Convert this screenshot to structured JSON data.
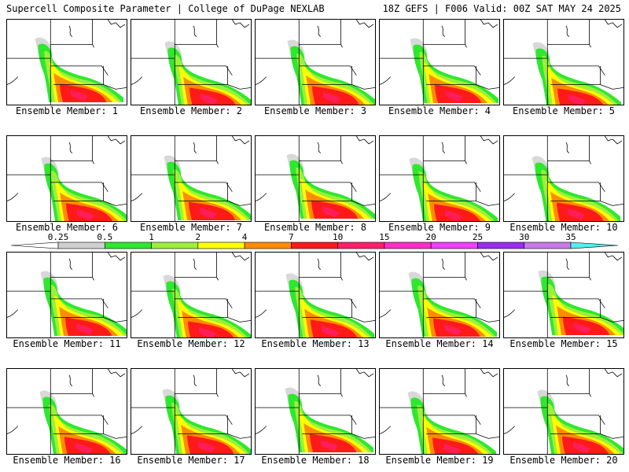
{
  "header": {
    "left": "Supercell Composite Parameter | College of DuPage NEXLAB",
    "right": "18Z GEFS | F006 Valid: 00Z SAT MAY 24 2025"
  },
  "members": [
    {
      "label": "Ensemble Member: 1"
    },
    {
      "label": "Ensemble Member: 2"
    },
    {
      "label": "Ensemble Member: 3"
    },
    {
      "label": "Ensemble Member: 4"
    },
    {
      "label": "Ensemble Member: 5"
    },
    {
      "label": "Ensemble Member: 6"
    },
    {
      "label": "Ensemble Member: 7"
    },
    {
      "label": "Ensemble Member: 8"
    },
    {
      "label": "Ensemble Member: 9"
    },
    {
      "label": "Ensemble Member: 10"
    },
    {
      "label": "Ensemble Member: 11"
    },
    {
      "label": "Ensemble Member: 12"
    },
    {
      "label": "Ensemble Member: 13"
    },
    {
      "label": "Ensemble Member: 14"
    },
    {
      "label": "Ensemble Member: 15"
    },
    {
      "label": "Ensemble Member: 16"
    },
    {
      "label": "Ensemble Member: 17"
    },
    {
      "label": "Ensemble Member: 18"
    },
    {
      "label": "Ensemble Member: 19"
    },
    {
      "label": "Ensemble Member: 20"
    }
  ],
  "legend": {
    "ticks": [
      "0.25",
      "0.5",
      "1",
      "2",
      "4",
      "7",
      "10",
      "15",
      "20",
      "25",
      "30",
      "35"
    ],
    "colors": [
      "#cfcfcf",
      "#2ee82e",
      "#9cf03c",
      "#ffff00",
      "#ff8c00",
      "#ff1a1a",
      "#ff1e6a",
      "#ff2dc8",
      "#ee40ff",
      "#9a2cf0",
      "#c77ae8",
      "#50f0f0"
    ]
  },
  "map_colors": {
    "gray": "#c8c8c8",
    "green": "#2ee82e",
    "lightgreen": "#9cf03c",
    "yellow": "#ffff00",
    "orange": "#ff8c00",
    "red": "#ff1a1a",
    "magenta": "#ff1e6a"
  }
}
